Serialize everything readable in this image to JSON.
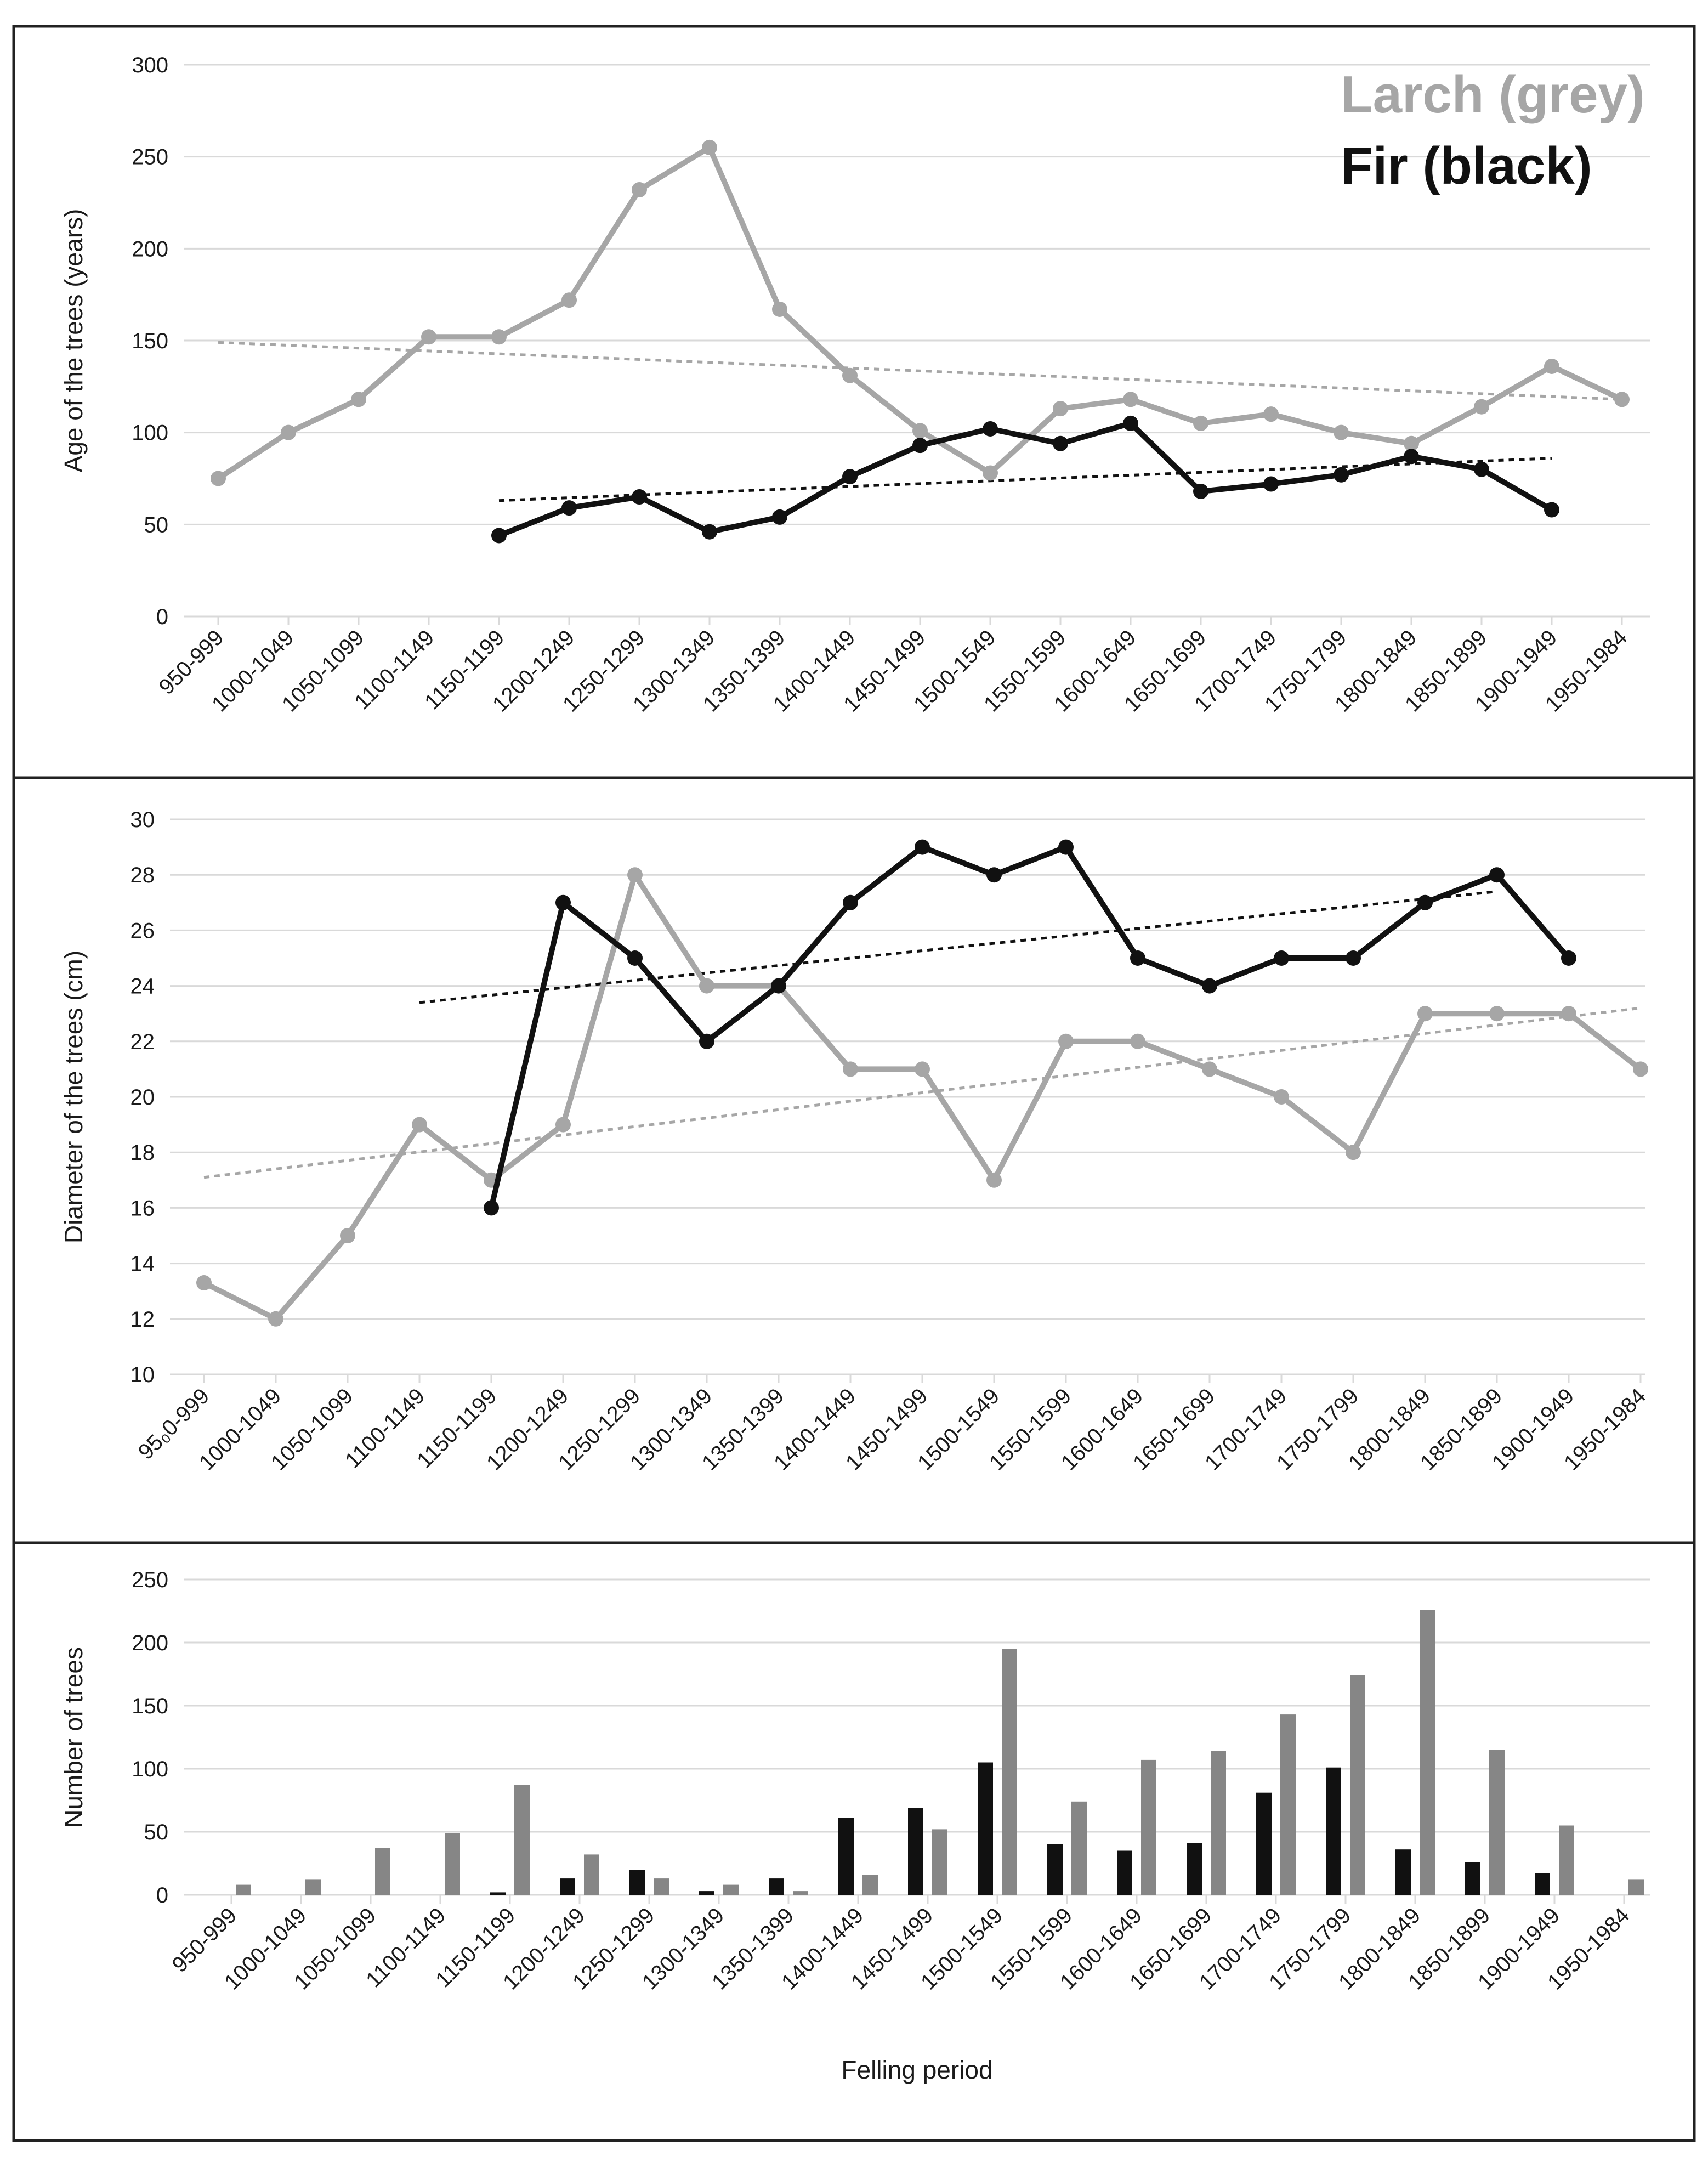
{
  "legend": {
    "larch_label": "Larch (grey)",
    "fir_label": "Fir (black)"
  },
  "colors": {
    "larch": "#a6a6a6",
    "larch_bar": "#868686",
    "fir": "#111111",
    "grid": "#d9d9d9"
  },
  "chart_data": [
    {
      "type": "line",
      "ylabel": "Age of the trees (years)",
      "xlabel": "",
      "ylim": [
        0,
        300
      ],
      "yticks": [
        0,
        50,
        100,
        150,
        200,
        250,
        300
      ],
      "categories": [
        "950-999",
        "1000-1049",
        "1050-1099",
        "1100-1149",
        "1150-1199",
        "1200-1249",
        "1250-1299",
        "1300-1349",
        "1350-1399",
        "1400-1449",
        "1450-1499",
        "1500-1549",
        "1550-1599",
        "1600-1649",
        "1650-1699",
        "1700-1749",
        "1750-1799",
        "1800-1849",
        "1850-1899",
        "1900-1949",
        "1950-1984"
      ],
      "series": [
        {
          "name": "Larch",
          "color": "#a6a6a6",
          "values": [
            75,
            100,
            118,
            152,
            152,
            172,
            232,
            255,
            167,
            131,
            101,
            78,
            113,
            118,
            105,
            110,
            100,
            94,
            114,
            136,
            118
          ]
        },
        {
          "name": "Fir",
          "color": "#111111",
          "values": [
            null,
            null,
            null,
            null,
            44,
            59,
            65,
            46,
            54,
            76,
            93,
            102,
            94,
            105,
            68,
            72,
            77,
            87,
            80,
            58,
            null
          ]
        }
      ],
      "trendlines": [
        {
          "series": "Larch",
          "color": "#a6a6a6",
          "from_index": 0,
          "to_index": 20,
          "start": 149,
          "end": 118
        },
        {
          "series": "Fir",
          "color": "#111111",
          "from_index": 4,
          "to_index": 19,
          "start": 63,
          "end": 86
        }
      ]
    },
    {
      "type": "line",
      "ylabel": "Diameter of the trees (cm)",
      "xlabel": "",
      "ylim": [
        10,
        30
      ],
      "yticks": [
        10,
        12,
        14,
        16,
        18,
        20,
        22,
        24,
        26,
        28,
        30
      ],
      "categories": [
        "95₀0-999",
        "1000-1049",
        "1050-1099",
        "1100-1149",
        "1150-1199",
        "1200-1249",
        "1250-1299",
        "1300-1349",
        "1350-1399",
        "1400-1449",
        "1450-1499",
        "1500-1549",
        "1550-1599",
        "1600-1649",
        "1650-1699",
        "1700-1749",
        "1750-1799",
        "1800-1849",
        "1850-1899",
        "1900-1949",
        "1950-1984"
      ],
      "series": [
        {
          "name": "Larch",
          "color": "#a6a6a6",
          "values": [
            13.3,
            12,
            15,
            19,
            17,
            19,
            28,
            24,
            24,
            21,
            21,
            17,
            22,
            22,
            21,
            20,
            18,
            23,
            23,
            23,
            21
          ]
        },
        {
          "name": "Fir",
          "color": "#111111",
          "values": [
            null,
            null,
            null,
            null,
            16,
            27,
            25,
            22,
            24,
            27,
            29,
            28,
            29,
            25,
            24,
            25,
            25,
            27,
            28,
            25,
            null
          ]
        }
      ],
      "trendlines": [
        {
          "series": "Larch",
          "color": "#a6a6a6",
          "from_index": 0,
          "to_index": 20,
          "start": 17.1,
          "end": 23.2
        },
        {
          "series": "Fir",
          "color": "#111111",
          "from_index": 3,
          "to_index": 18,
          "start": 23.4,
          "end": 27.4
        }
      ]
    },
    {
      "type": "bar",
      "ylabel": "Number of trees",
      "xlabel": "Felling period",
      "ylim": [
        0,
        250
      ],
      "yticks": [
        0,
        50,
        100,
        150,
        200,
        250
      ],
      "categories": [
        "950-999",
        "1000-1049",
        "1050-1099",
        "1100-1149",
        "1150-1199",
        "1200-1249",
        "1250-1299",
        "1300-1349",
        "1350-1399",
        "1400-1449",
        "1450-1499",
        "1500-1549",
        "1550-1599",
        "1600-1649",
        "1650-1699",
        "1700-1749",
        "1750-1799",
        "1800-1849",
        "1850-1899",
        "1900-1949",
        "1950-1984"
      ],
      "series": [
        {
          "name": "Fir",
          "color": "#111111",
          "values": [
            0,
            0,
            0,
            0,
            2,
            13,
            20,
            3,
            13,
            61,
            69,
            105,
            40,
            35,
            41,
            81,
            101,
            36,
            26,
            17,
            0
          ]
        },
        {
          "name": "Larch",
          "color": "#868686",
          "values": [
            8,
            12,
            37,
            49,
            87,
            32,
            13,
            8,
            3,
            16,
            52,
            195,
            74,
            107,
            114,
            143,
            174,
            226,
            115,
            55,
            12
          ]
        }
      ]
    }
  ]
}
